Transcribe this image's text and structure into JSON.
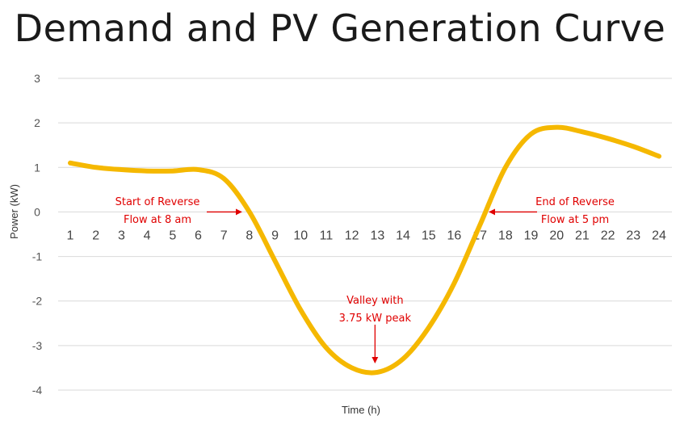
{
  "chart_data": {
    "type": "line",
    "title": "Demand and PV Generation Curve",
    "xlabel": "Time (h)",
    "ylabel": "Power (kW)",
    "ylim": [
      -4,
      3
    ],
    "yticks": [
      3,
      2,
      1,
      0,
      -1,
      -2,
      -3,
      -4
    ],
    "x": [
      1,
      2,
      3,
      4,
      5,
      6,
      7,
      8,
      9,
      10,
      11,
      12,
      13,
      14,
      15,
      16,
      17,
      18,
      19,
      20,
      21,
      22,
      23,
      24
    ],
    "series": [
      {
        "values": [
          1.1,
          1.0,
          0.95,
          0.92,
          0.92,
          0.95,
          0.75,
          0.0,
          -1.1,
          -2.2,
          -3.05,
          -3.5,
          -3.6,
          -3.3,
          -2.6,
          -1.6,
          -0.3,
          1.0,
          1.75,
          1.9,
          1.8,
          1.65,
          1.47,
          1.25
        ],
        "color": "#f5b800"
      }
    ],
    "grid": true,
    "annotations": [
      {
        "lines": [
          "Start of Reverse",
          "Flow at 8 am"
        ],
        "x": 8,
        "y": 0
      },
      {
        "lines": [
          "End of Reverse",
          "Flow at 5 pm"
        ],
        "x": 17,
        "y": 0
      },
      {
        "lines": [
          "Valley with",
          "3.75 kW peak"
        ],
        "x": 13,
        "y": -3.6
      }
    ],
    "annotation_color": "#e00000"
  }
}
